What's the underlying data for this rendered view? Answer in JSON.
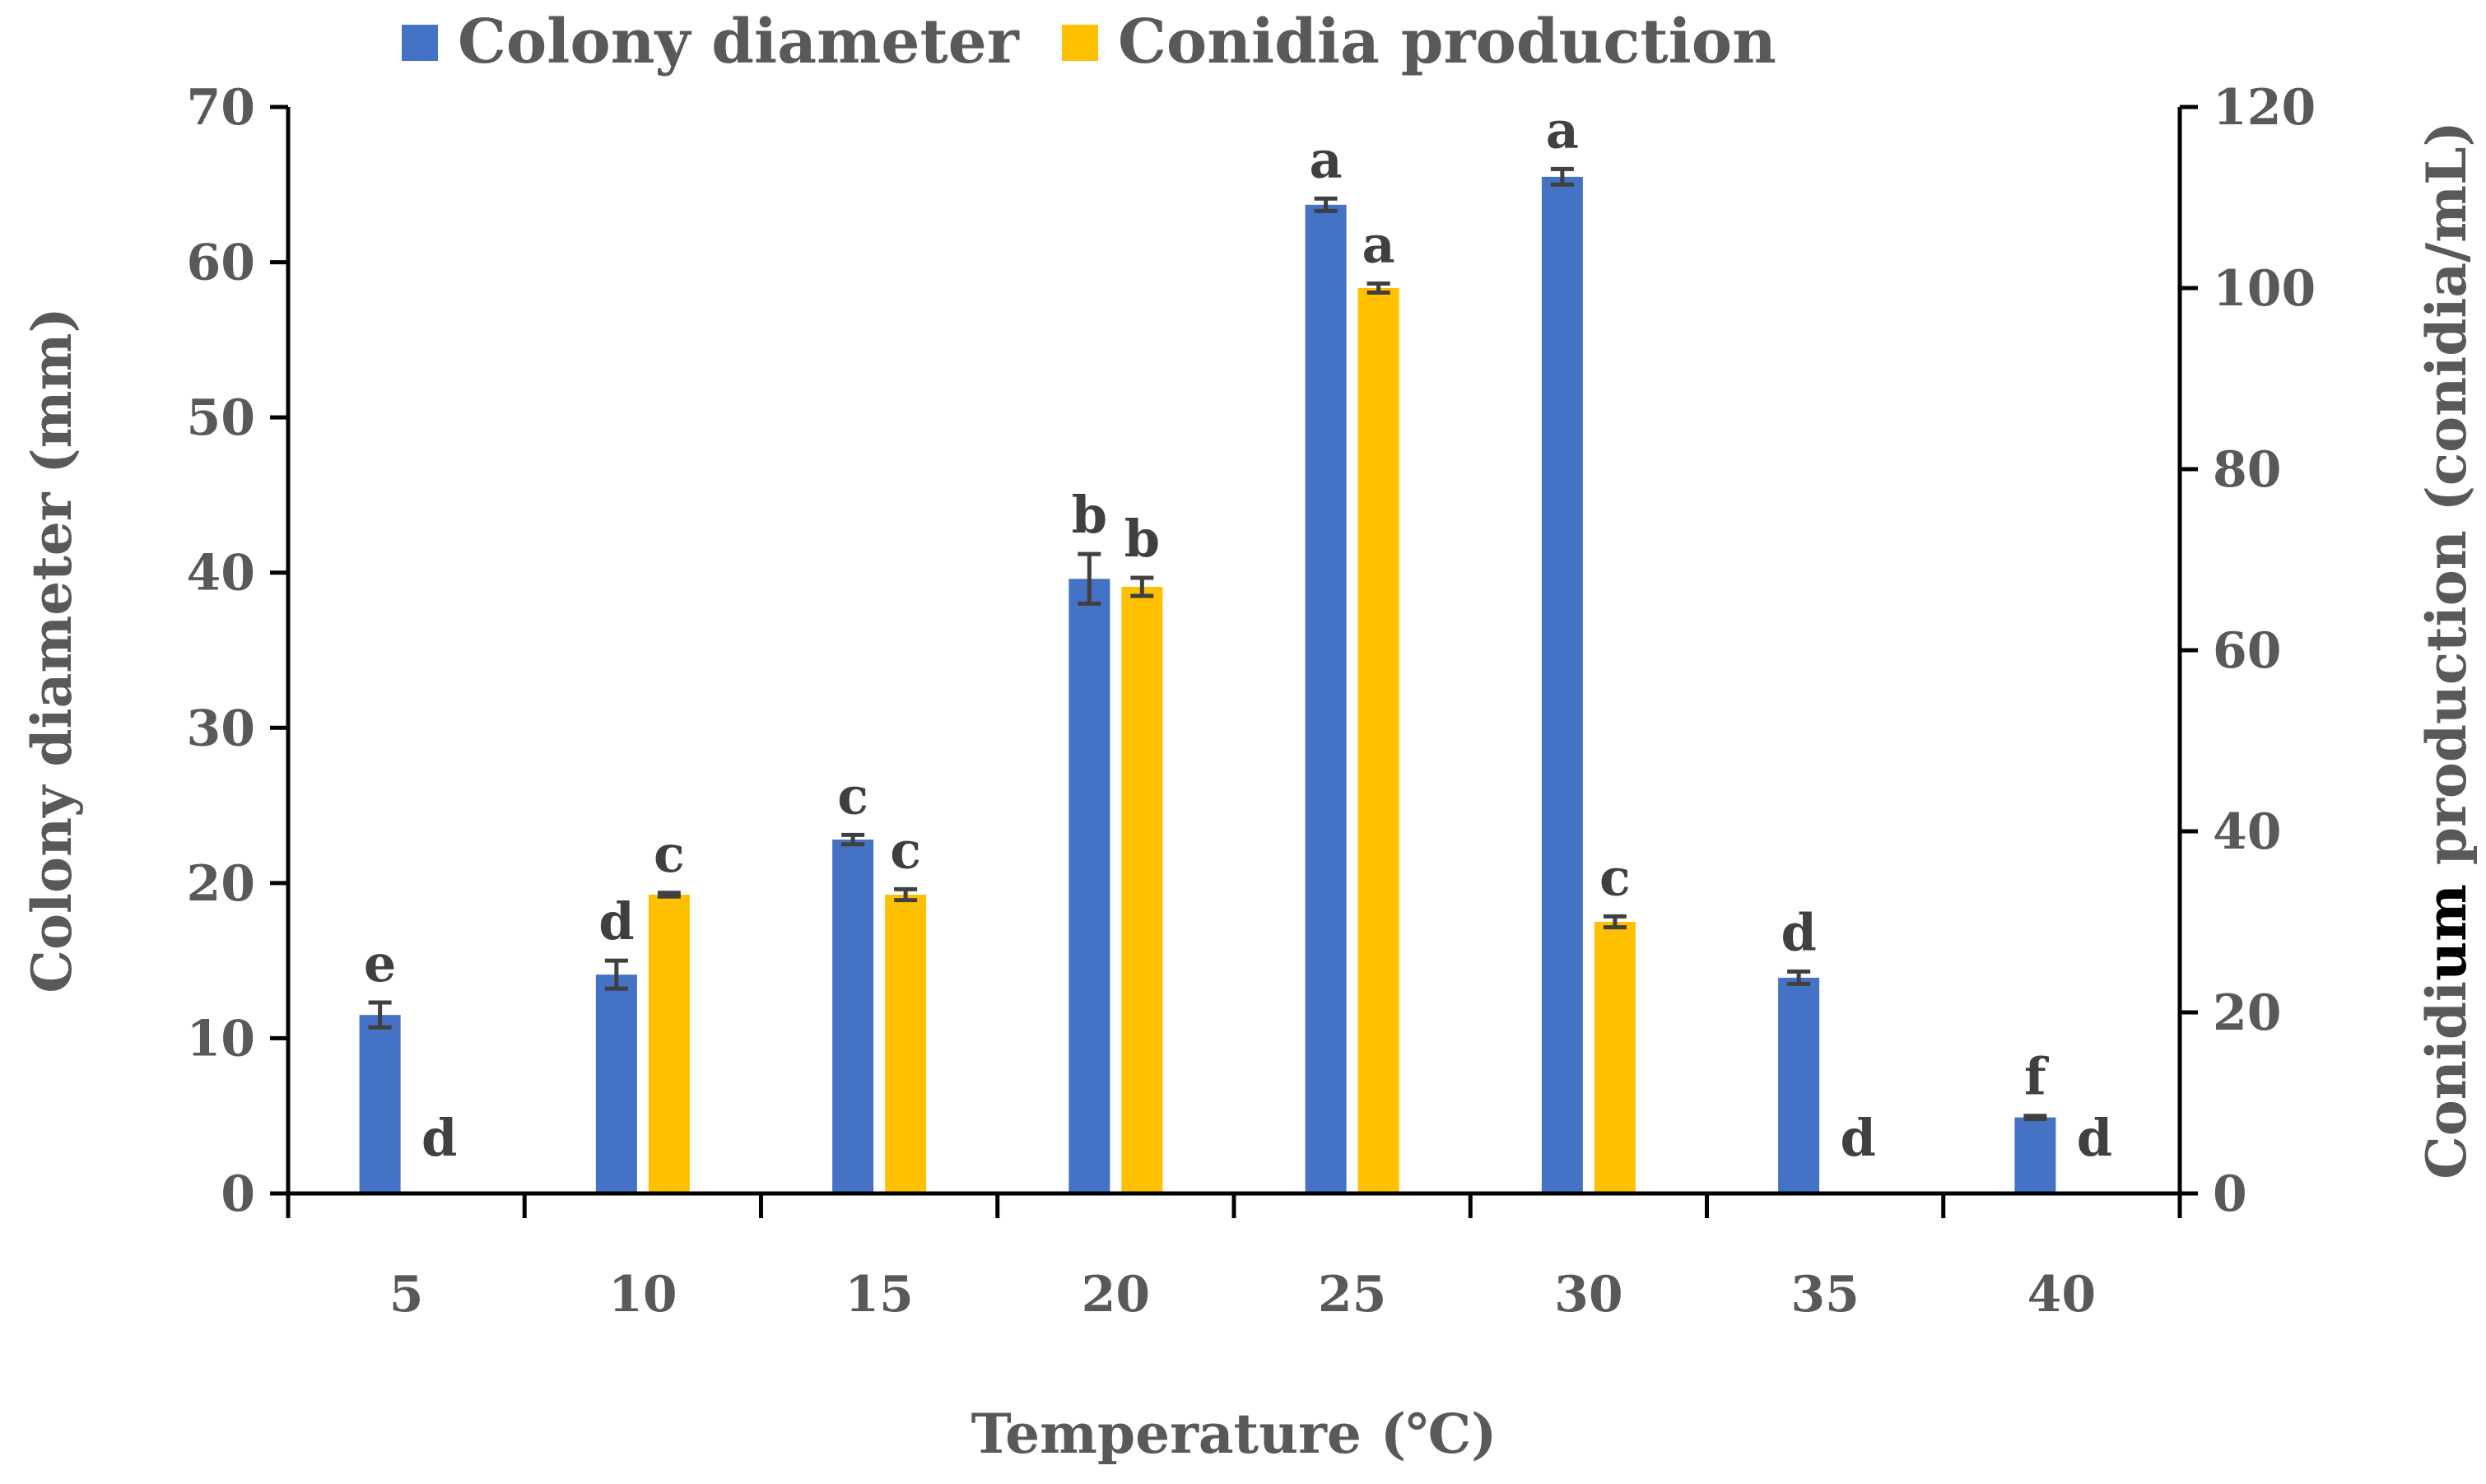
{
  "chart_data": {
    "type": "bar",
    "xlabel": "Temperature  (℃)",
    "ylabel_left": "Colony diameter (mm)",
    "ylabel_right_parts": [
      "Conidi",
      "um",
      " production (conidia/mL)"
    ],
    "categories": [
      "5",
      "10",
      "15",
      "20",
      "25",
      "30",
      "35",
      "40"
    ],
    "ylim_left": [
      0,
      70
    ],
    "yticks_left": [
      "0",
      "10",
      "20",
      "30",
      "40",
      "50",
      "60",
      "70"
    ],
    "ylim_right": [
      0,
      120
    ],
    "yticks_right": [
      "0",
      "20",
      "40",
      "60",
      "80",
      "100",
      "120"
    ],
    "grid": false,
    "legend_position": "top",
    "colors": {
      "colony": "#4472C4",
      "conidia": "#FFC000"
    },
    "series": [
      {
        "name": "Colony diameter",
        "axis": "left",
        "values": [
          11.5,
          14.1,
          22.8,
          39.6,
          63.7,
          65.5,
          13.9,
          4.9
        ],
        "errors": [
          0.8,
          0.9,
          0.3,
          1.6,
          0.4,
          0.5,
          0.4,
          0.1
        ],
        "labels": [
          "e",
          "d",
          "c",
          "b",
          "a",
          "a",
          "d",
          "f"
        ]
      },
      {
        "name": "Conidia production",
        "axis": "right",
        "values": [
          0,
          33.0,
          33.0,
          67.0,
          100.0,
          30.0,
          0,
          0
        ],
        "errors": [
          0,
          0.2,
          0.6,
          1.0,
          0.5,
          0.6,
          0,
          0
        ],
        "labels": [
          "d",
          "c",
          "c",
          "b",
          "a",
          "c",
          "d",
          "d"
        ]
      }
    ]
  }
}
